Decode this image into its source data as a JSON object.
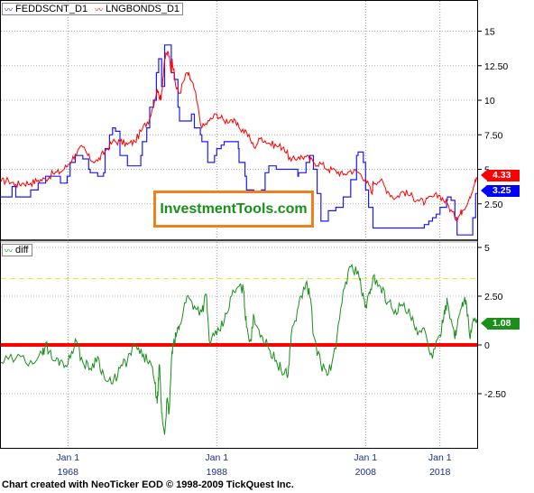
{
  "footer": "Chart created with NeoTicker EOD © 1998-2009 TickQuest Inc.",
  "watermark": "InvestmentTools.com",
  "colors": {
    "fed": "#1a1aff",
    "bonds": "#ff0000",
    "diff": "#1a8f1a",
    "zero_line": "#ff0000",
    "dashed_line": "#e8e840",
    "watermark_border": "#f07f1e",
    "badge_fed": "#0000ff",
    "badge_bonds": "#ff0000",
    "badge_diff": "#1a8f1a"
  },
  "legend_top": {
    "series": [
      "FEDDSCNT_D1",
      "LNGBONDS_D1"
    ],
    "icon": "line-chart-icon"
  },
  "legend_bottom": {
    "series": [
      "diff"
    ],
    "icon": "line-chart-icon"
  },
  "badges": {
    "bonds": "4.33",
    "fed": "3.25",
    "diff": "1.08"
  },
  "chart_data": [
    {
      "type": "line",
      "title": "",
      "x_tick_labels": [
        {
          "top": "Jan 1",
          "bottom": "1968",
          "x": 1968
        },
        {
          "top": "Jan 1",
          "bottom": "1988",
          "x": 1988
        },
        {
          "top": "Jan 1",
          "bottom": "2008",
          "x": 2008
        },
        {
          "top": "Jan 1",
          "bottom": "2018",
          "x": 2018
        }
      ],
      "y_tick_labels": [
        "15",
        "12.50",
        "10",
        "7.50",
        "5",
        "2.50"
      ],
      "ylim": [
        0,
        16.5
      ],
      "xlim": [
        1959,
        2023
      ],
      "series": [
        {
          "name": "FEDDSCNT_D1",
          "x": [
            1959,
            1960,
            1960.5,
            1961,
            1962,
            1963,
            1963.6,
            1964,
            1964.8,
            1965,
            1965.9,
            1966,
            1966.5,
            1967,
            1967.3,
            1967.9,
            1968.3,
            1969,
            1969.3,
            1970,
            1970.8,
            1971,
            1971.4,
            1972,
            1972.8,
            1973,
            1973.6,
            1974,
            1974.4,
            1975,
            1975.7,
            1976,
            1977,
            1977.8,
            1978,
            1978.6,
            1979,
            1979.5,
            1979.9,
            1980.2,
            1980.6,
            1981,
            1981.4,
            1981.9,
            1982.3,
            1982.8,
            1983,
            1984,
            1984.6,
            1985,
            1985.8,
            1986,
            1986.8,
            1987,
            1987.7,
            1988,
            1988.6,
            1989,
            1989.8,
            1990,
            1990.9,
            1991,
            1991.8,
            1992,
            1993,
            1994,
            1994.5,
            1995,
            1995.6,
            1996,
            1997,
            1998,
            1998.9,
            1999,
            2000,
            2000.5,
            2001,
            2001.5,
            2002,
            2003,
            2004,
            2005,
            2006,
            2006.8,
            2007,
            2007.7,
            2008,
            2008.4,
            2009,
            2010,
            2012,
            2015,
            2015.9,
            2016.5,
            2017,
            2017.5,
            2018,
            2018.9,
            2019,
            2019.5,
            2020,
            2020.3,
            2021,
            2022,
            2022.4,
            2022.8,
            2023
          ],
          "y": [
            3.0,
            3.0,
            3.75,
            3.0,
            3.0,
            3.5,
            3.5,
            4.0,
            4.0,
            4.5,
            4.5,
            4.5,
            4.5,
            4.0,
            4.0,
            4.5,
            5.5,
            6.0,
            6.0,
            5.75,
            5.0,
            4.75,
            4.75,
            4.5,
            4.75,
            6.5,
            7.5,
            8.0,
            7.75,
            6.0,
            6.0,
            5.25,
            5.25,
            6.0,
            7.0,
            8.0,
            9.5,
            10.0,
            12.0,
            13.0,
            11.0,
            14.0,
            14.0,
            12.0,
            11.5,
            9.5,
            8.5,
            8.5,
            9.0,
            8.0,
            7.5,
            7.0,
            5.5,
            5.5,
            6.0,
            6.5,
            6.75,
            7.0,
            7.0,
            7.0,
            6.5,
            5.5,
            4.5,
            3.5,
            3.0,
            3.5,
            4.75,
            5.25,
            5.25,
            5.0,
            5.0,
            5.0,
            4.5,
            4.75,
            5.5,
            6.0,
            5.0,
            3.25,
            1.25,
            2.0,
            2.25,
            3.0,
            4.25,
            6.0,
            6.25,
            5.5,
            3.5,
            2.25,
            0.75,
            0.75,
            0.75,
            0.75,
            1.0,
            1.25,
            1.5,
            1.75,
            2.25,
            2.75,
            3.0,
            2.75,
            1.5,
            0.25,
            0.25,
            0.25,
            1.5,
            3.25,
            3.25
          ]
        },
        {
          "name": "LNGBONDS_D1",
          "x": [
            1959,
            1960,
            1961,
            1962,
            1963,
            1964,
            1965,
            1966,
            1967,
            1968,
            1969,
            1970,
            1971,
            1972,
            1973,
            1974,
            1975,
            1976,
            1977,
            1978,
            1979,
            1980,
            1980.5,
            1981,
            1981.5,
            1981.9,
            1982,
            1982.5,
            1983,
            1984,
            1984.5,
            1985,
            1986,
            1987,
            1988,
            1989,
            1990,
            1991,
            1992,
            1993,
            1994,
            1995,
            1996,
            1997,
            1998,
            1999,
            2000,
            2001,
            2002,
            2003,
            2004,
            2005,
            2006,
            2007,
            2008,
            2008.9,
            2009,
            2010,
            2011,
            2012,
            2013,
            2014,
            2015,
            2016,
            2017,
            2018,
            2019,
            2020,
            2020.5,
            2021,
            2022,
            2022.7,
            2023
          ],
          "y": [
            4.1,
            4.2,
            3.9,
            4.0,
            4.0,
            4.2,
            4.3,
            4.7,
            4.8,
            5.3,
            6.1,
            6.6,
            5.7,
            5.6,
            6.3,
            7.0,
            7.0,
            6.8,
            7.0,
            7.9,
            8.7,
            10.8,
            10.0,
            13.0,
            13.5,
            12.0,
            13.0,
            11.0,
            10.5,
            12.0,
            11.5,
            10.8,
            8.0,
            8.5,
            9.0,
            8.5,
            8.6,
            8.0,
            7.7,
            6.6,
            7.3,
            6.9,
            6.7,
            6.6,
            5.6,
            5.9,
            5.9,
            5.5,
            5.4,
            5.0,
            4.9,
            4.6,
            4.9,
            4.8,
            4.3,
            3.2,
            4.1,
            4.2,
            3.4,
            2.9,
            3.4,
            3.1,
            2.8,
            2.6,
            3.0,
            3.1,
            2.5,
            1.5,
            1.6,
            2.0,
            3.0,
            4.1,
            4.3
          ]
        }
      ]
    },
    {
      "type": "line",
      "title": "",
      "y_tick_labels": [
        "5",
        "2.50",
        "0",
        "-2.50"
      ],
      "ylim": [
        -4.9,
        5.5
      ],
      "xlim": [
        1959,
        2023
      ],
      "reference_lines": [
        0,
        3.4
      ],
      "series": [
        {
          "name": "diff",
          "x": [
            1959,
            1961,
            1963,
            1964.6,
            1965,
            1966,
            1967,
            1968,
            1969,
            1970,
            1971,
            1972,
            1973,
            1974,
            1975,
            1976,
            1977,
            1978,
            1979,
            1979.7,
            1980,
            1980.3,
            1980.6,
            1981,
            1981.3,
            1981.6,
            1982,
            1982.3,
            1982.6,
            1983,
            1984,
            1985,
            1986,
            1986.6,
            1987,
            1988,
            1989,
            1990,
            1991,
            1991.6,
            1992,
            1992.6,
            1993,
            1994,
            1995,
            1996,
            1997,
            1997.6,
            1998,
            1999,
            2000,
            2000.6,
            2001,
            2002,
            2003,
            2004,
            2005,
            2006,
            2007,
            2007.6,
            2008,
            2008.6,
            2009,
            2010,
            2011,
            2012,
            2013,
            2014,
            2015,
            2016,
            2017,
            2018,
            2018.6,
            2019,
            2020,
            2020.5,
            2021,
            2021.5,
            2022,
            2022.4,
            2023
          ],
          "y": [
            -0.9,
            -0.7,
            -0.8,
            -0.5,
            0.1,
            -0.8,
            -0.8,
            -1.0,
            0.3,
            -0.9,
            -1.2,
            -0.6,
            -1.8,
            -2.0,
            -1.2,
            -0.8,
            0.0,
            -0.6,
            -0.8,
            -2.0,
            -3.0,
            -1.0,
            -3.5,
            -4.6,
            -2.8,
            -3.5,
            -0.3,
            0.1,
            0.6,
            1.0,
            2.5,
            2.0,
            1.7,
            2.6,
            0.2,
            0.5,
            1.2,
            2.5,
            3.0,
            2.8,
            0.9,
            0.2,
            1.5,
            0.5,
            -0.2,
            -0.8,
            -1.5,
            -1.5,
            0.5,
            2.0,
            3.2,
            2.4,
            0.5,
            -1.0,
            -1.5,
            -0.2,
            2.8,
            4.0,
            3.8,
            2.5,
            2.0,
            2.6,
            3.5,
            3.0,
            2.2,
            1.8,
            2.0,
            1.5,
            0.5,
            0.7,
            -0.7,
            0.5,
            1.8,
            2.2,
            0.3,
            1.4,
            2.2,
            2.3,
            0.4,
            1.2,
            1.1
          ]
        }
      ]
    }
  ]
}
